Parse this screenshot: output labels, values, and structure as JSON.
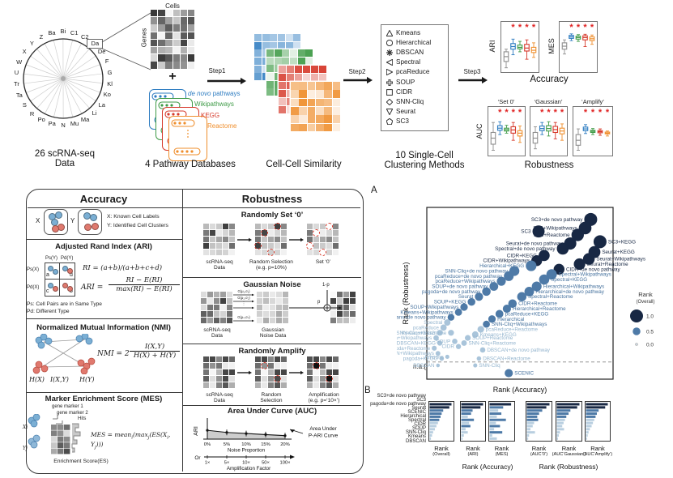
{
  "colors": {
    "blue": "#2d7cc1",
    "green": "#3f9b47",
    "red": "#d6392b",
    "orange": "#ef8f2e",
    "navy": "#182844",
    "mid_blue": "#4e7aa7",
    "light_blue": "#a9c4da",
    "gray": "#8f8f8f",
    "asterisk": "#e02020",
    "box_palette": [
      "#8f8f8f",
      "#2d7cc1",
      "#3f9b47",
      "#d6392b",
      "#ef8f2e"
    ]
  },
  "workflow": {
    "datasets": {
      "labels": [
        "Ba",
        "Bi",
        "C1",
        "C2",
        "Da",
        "De",
        "F",
        "G",
        "Kl",
        "Ko",
        "La",
        "Li",
        "Ma",
        "Mu",
        "N",
        "Pa",
        "Po",
        "R",
        "S",
        "Ta",
        "Tr",
        "U",
        "W",
        "X",
        "Y",
        "Z"
      ],
      "highlight": "Da",
      "caption1": "26 scRNA-seq",
      "caption2": "Data"
    },
    "matrix": {
      "cells": "Cells",
      "genes": "Genes",
      "plus": "+"
    },
    "pathways": {
      "items": [
        {
          "italic": "de novo",
          "text": " pathways",
          "color": "#2d7cc1"
        },
        {
          "italic": "",
          "text": "Wikipathways",
          "color": "#3f9b47"
        },
        {
          "italic": "",
          "text": "KEGG",
          "color": "#d6392b"
        },
        {
          "italic": "",
          "text": "Reactome",
          "color": "#ef8f2e"
        }
      ],
      "caption": "4 Pathway Databases"
    },
    "steps": [
      "Step1",
      "Step2",
      "Step3"
    ],
    "similarity": {
      "caption": "Cell-Cell Similarity"
    },
    "methods": {
      "items": [
        {
          "shape": "triangle-up",
          "label": "Kmeans"
        },
        {
          "shape": "circle",
          "label": "Hierarchical"
        },
        {
          "shape": "asterisk",
          "label": "DBSCAN"
        },
        {
          "shape": "triangle-left",
          "label": "Spectral"
        },
        {
          "shape": "triangle-right",
          "label": "pcaReduce"
        },
        {
          "shape": "cross",
          "label": "SOUP"
        },
        {
          "shape": "square",
          "label": "CIDR"
        },
        {
          "shape": "diamond",
          "label": "SNN-Cliq"
        },
        {
          "shape": "triangle-down",
          "label": "Seurat"
        },
        {
          "shape": "pentagon",
          "label": "SC3"
        }
      ],
      "caption1": "10 Single-Cell",
      "caption2": "Clustering Methods"
    },
    "plots": {
      "ari": "ARI",
      "mes": "MES",
      "auc": "AUC",
      "titles": [
        "‘Set 0’",
        "‘Gaussian’",
        "‘Amplify’"
      ],
      "accuracy": "Accuracy",
      "robustness": "Robustness"
    }
  },
  "metrics": {
    "acc": {
      "header": "Accuracy",
      "x": "X",
      "y": "Y",
      "note_x": "X: Known Cell Labels",
      "note_y": "Y: Identified Cell Clusters",
      "ari": {
        "heading": "Adjusted Rand Index (ARI)",
        "col1": "Ps(Y)",
        "col2": "Pd(Y)",
        "row1": "Ps(X)",
        "row2": "Pd(X)",
        "a": "a",
        "d": "d",
        "c": "c",
        "b": "b",
        "f1": "RI = (a+b)/(a+b+c+d)",
        "f2l": "ARI =",
        "f2n": "RI − E(RI)",
        "f2d": "max(RI) − E(RI)",
        "n1": "Ps: Cell Pairs are in Same Type",
        "n2": "Pd: Different Type"
      },
      "nmi": {
        "heading": "Normalized Mutual Information (NMI)",
        "hx": "H(X)",
        "ixy": "I(X,Y)",
        "hy": "H(Y)",
        "fl": "NMI = 2",
        "fn": "I(X,Y)",
        "fd": "H(X) + H(Y)"
      },
      "mes": {
        "heading": "Marker Enrichment Score (MES)",
        "gm1": "gene marker 1",
        "gm2": "gene marker 2",
        "hits": "Hits",
        "xi": "Xi",
        "yj": "Yj",
        "es": "Enrichment Score(ES)",
        "f": {
          "p1": "MES = mean",
          "s1": "i",
          "p2": "(max",
          "s2": "j",
          "p3": "(ES(X",
          "s3": "i",
          "p4": ", Y",
          "s4": "j",
          "p5": ")))"
        }
      }
    },
    "rob": {
      "header": "Robustness",
      "set0": {
        "heading": "Randomly Set ‘0’",
        "c1a": "scRNA-seq",
        "c1b": "Data",
        "c2a": "Random Selection",
        "c2b": "(e.g. p=10%)",
        "c3": "Set ‘0’"
      },
      "gauss": {
        "heading": "Gaussian Noise",
        "g1": "G(μ₁,σ₁)",
        "g2": "G(μ₂,σ₂)",
        "dots": "⋮",
        "gn": "G(μₙ,σₙ)",
        "p": "p",
        "q": "1-p",
        "c1a": "scRNA-seq",
        "c1b": "Data",
        "c2a": "Gaussian",
        "c2b": "Noise Data"
      },
      "amp": {
        "heading": "Randomly Amplify",
        "c1a": "scRNA-seq",
        "c1b": "Data",
        "c2a": "Random",
        "c2b": "Selection",
        "c3a": "Amplification",
        "c3b": "(e.g. p=‘10×’)"
      }
    }
  },
  "panelA": {
    "label": "A"
  },
  "panelB": {
    "label": "B"
  },
  "chart_data": [
    {
      "type": "scatter",
      "name": "overall-rank-scatter",
      "xlabel": "Rank (Accuracy)",
      "ylabel": "Rank (Robustness)",
      "na_label": "n.a.{",
      "dashed_y": 0.1,
      "legend": {
        "title": "Rank",
        "subtitle": "(Overall)",
        "entries": [
          {
            "label": "1.0",
            "rank": 1.0
          },
          {
            "label": "0.5",
            "rank": 0.5
          },
          {
            "label": "0.0",
            "rank": 0.0
          }
        ]
      },
      "points": [
        {
          "label": "SC3+de novo pathway",
          "x": 0.88,
          "y": 0.93,
          "rank": 1.0,
          "side": "l"
        },
        {
          "label": "SC3+KEGG",
          "x": 0.93,
          "y": 0.8,
          "rank": 1.0,
          "side": "r"
        },
        {
          "label": "SC3+Wikipathways",
          "x": 0.85,
          "y": 0.88,
          "rank": 0.97,
          "side": "l"
        },
        {
          "label": "SC3+Reactome",
          "x": 0.81,
          "y": 0.84,
          "rank": 0.95,
          "side": "l"
        },
        {
          "label": "SC3",
          "x": 0.6,
          "y": 0.86,
          "rank": 0.92,
          "side": "l"
        },
        {
          "label": "Seurat+de novo pathway",
          "x": 0.77,
          "y": 0.79,
          "rank": 0.93,
          "side": "l"
        },
        {
          "label": "Spectral+de novo pathway",
          "x": 0.73,
          "y": 0.76,
          "rank": 0.9,
          "side": "l"
        },
        {
          "label": "Seurat+KEGG",
          "x": 0.9,
          "y": 0.74,
          "rank": 0.9,
          "side": "r"
        },
        {
          "label": "Seurat+Wikipathways",
          "x": 0.87,
          "y": 0.7,
          "rank": 0.88,
          "side": "r"
        },
        {
          "label": "Seurat+Reactome",
          "x": 0.82,
          "y": 0.67,
          "rank": 0.86,
          "side": "r"
        },
        {
          "label": "CIDR+KEGG",
          "x": 0.63,
          "y": 0.72,
          "rank": 0.82,
          "side": "l"
        },
        {
          "label": "CIDR+Wikipathways",
          "x": 0.59,
          "y": 0.69,
          "rank": 0.8,
          "side": "l"
        },
        {
          "label": "Hierarchical+KEGG",
          "x": 0.56,
          "y": 0.66,
          "rank": 0.78,
          "side": "l"
        },
        {
          "label": "CIDR+de novo pathway",
          "x": 0.71,
          "y": 0.64,
          "rank": 0.8,
          "side": "r"
        },
        {
          "label": "Spectral+Wikipathways",
          "x": 0.67,
          "y": 0.61,
          "rank": 0.76,
          "side": "r"
        },
        {
          "label": "Spectral+KEGG",
          "x": 0.63,
          "y": 0.58,
          "rank": 0.74,
          "side": "r"
        },
        {
          "label": "SNN-Cliq+de novo pathway",
          "x": 0.47,
          "y": 0.63,
          "rank": 0.72,
          "side": "l"
        },
        {
          "label": "pcaReduce+de novo pathway",
          "x": 0.44,
          "y": 0.6,
          "rank": 0.7,
          "side": "l"
        },
        {
          "label": "Hierarchical+Wikipathways",
          "x": 0.59,
          "y": 0.54,
          "rank": 0.7,
          "side": "r"
        },
        {
          "label": "Hierarchical+de novo pathway",
          "x": 0.55,
          "y": 0.51,
          "rank": 0.68,
          "side": "r"
        },
        {
          "label": "Spectral+Reactome",
          "x": 0.51,
          "y": 0.48,
          "rank": 0.65,
          "side": "r"
        },
        {
          "label": "pcaReduce+Wikipathways",
          "x": 0.4,
          "y": 0.57,
          "rank": 0.62,
          "side": "l"
        },
        {
          "label": "SOUP+de novo pathway",
          "x": 0.36,
          "y": 0.54,
          "rank": 0.6,
          "side": "l"
        },
        {
          "label": "pagoda+de novo pathway",
          "x": 0.32,
          "y": 0.51,
          "rank": 0.58,
          "side": "l"
        },
        {
          "label": "Seurat",
          "x": 0.28,
          "y": 0.48,
          "rank": 0.55,
          "side": "l"
        },
        {
          "label": "CIDR+Reactome",
          "x": 0.46,
          "y": 0.44,
          "rank": 0.58,
          "side": "r"
        },
        {
          "label": "Hierarchical+Reactome",
          "x": 0.43,
          "y": 0.41,
          "rank": 0.55,
          "side": "r"
        },
        {
          "label": "pcaReduce+KEGG",
          "x": 0.39,
          "y": 0.38,
          "rank": 0.52,
          "side": "r"
        },
        {
          "label": "SOUP+KEGG",
          "x": 0.24,
          "y": 0.45,
          "rank": 0.5,
          "side": "l"
        },
        {
          "label": "SOUP+Wikipathways",
          "x": 0.2,
          "y": 0.42,
          "rank": 0.48,
          "side": "l"
        },
        {
          "label": "Kmeans+Wikipathways",
          "x": 0.17,
          "y": 0.39,
          "rank": 0.45,
          "side": "l"
        },
        {
          "label": "Kmeans+de novo pathway",
          "x": 0.13,
          "y": 0.36,
          "rank": 0.42,
          "side": "l"
        },
        {
          "label": "Hierarchical",
          "x": 0.35,
          "y": 0.35,
          "rank": 0.48,
          "side": "r"
        },
        {
          "label": "SNN-Cliq+Wikipathways",
          "x": 0.32,
          "y": 0.32,
          "rank": 0.44,
          "side": "r"
        },
        {
          "label": "pcaReduce+Reactome",
          "x": 0.29,
          "y": 0.29,
          "rank": 0.4,
          "side": "r"
        },
        {
          "label": "Kmeans+KEGG",
          "x": 0.26,
          "y": 0.26,
          "rank": 0.38,
          "side": "r"
        },
        {
          "label": "Spectral",
          "x": 0.11,
          "y": 0.33,
          "rank": 0.38,
          "side": "l"
        },
        {
          "label": "pcaReduce",
          "x": 0.09,
          "y": 0.3,
          "rank": 0.36,
          "side": "l"
        },
        {
          "label": "SNN-Cliq+KEGG",
          "x": 0.07,
          "y": 0.27,
          "rank": 0.33,
          "side": "l"
        },
        {
          "label": "Kmeans+Reactome",
          "x": 0.13,
          "y": 0.27,
          "rank": 0.33,
          "side": "l"
        },
        {
          "label": "SOUP+Reactome",
          "x": 0.22,
          "y": 0.24,
          "rank": 0.32,
          "side": "r"
        },
        {
          "label": "SNN-Cliq+Reactome",
          "x": 0.2,
          "y": 0.21,
          "rank": 0.3,
          "side": "r"
        },
        {
          "label": "pagoda+Wikipathways",
          "x": 0.05,
          "y": 0.24,
          "rank": 0.28,
          "side": "l"
        },
        {
          "label": "DBSCAN+KEGG",
          "x": 0.07,
          "y": 0.21,
          "rank": 0.26,
          "side": "l"
        },
        {
          "label": "SOUP",
          "x": 0.15,
          "y": 0.22,
          "rank": 0.28,
          "side": "l"
        },
        {
          "label": "pagoda+Reactome",
          "x": 0.04,
          "y": 0.18,
          "rank": 0.24,
          "side": "l"
        },
        {
          "label": "CIDR",
          "x": 0.17,
          "y": 0.19,
          "rank": 0.26,
          "side": "l"
        },
        {
          "label": "DBSCAN+Wikipathways",
          "x": 0.06,
          "y": 0.15,
          "rank": 0.22,
          "side": "l"
        },
        {
          "label": "DBSCAN+de novo pathway",
          "x": 0.3,
          "y": 0.17,
          "rank": 0.28,
          "side": "r"
        },
        {
          "label": "pagoda+KEGG",
          "x": 0.08,
          "y": 0.12,
          "rank": 0.2,
          "side": "l"
        },
        {
          "label": "DBSCAN+Reactome",
          "x": 0.28,
          "y": 0.12,
          "rank": 0.2,
          "side": "r"
        },
        {
          "label": "Kmeans",
          "x": 0.11,
          "y": 0.13,
          "rank": 0.16,
          "side": "l"
        },
        {
          "label": "SNN-Cliq",
          "x": 0.26,
          "y": 0.08,
          "rank": 0.16,
          "side": "r"
        },
        {
          "label": "DBSCAN",
          "x": 0.06,
          "y": 0.08,
          "rank": 0.12,
          "side": "l"
        },
        {
          "label": "SCENIC",
          "x": 0.44,
          "y": 0.035,
          "rank": 0.55,
          "side": "r"
        }
      ]
    },
    {
      "type": "bar",
      "name": "method-rank-bars",
      "categories": [
        "SC3+de novo pathway",
        "SC3",
        "pagoda+de novo pathway",
        "Seurat",
        "SCENIC",
        "Hierarchical",
        "Spectral",
        "CIDR",
        "SOUP",
        "SNN-Cliq",
        "Kmeans",
        "DBSCAN"
      ],
      "charts": [
        {
          "l1": "Rank",
          "l2": "(Overall)",
          "values": [
            1.0,
            0.9,
            0.62,
            0.55,
            0.5,
            0.44,
            0.38,
            0.31,
            0.24,
            0.16,
            0.11,
            0.06
          ]
        },
        {
          "l1": "Rank",
          "l2": "(ARI)",
          "values": [
            1.0,
            0.88,
            0.52,
            0.45,
            0.3,
            0.58,
            0.36,
            0.42,
            0.2,
            0.3,
            0.12,
            0.06
          ]
        },
        {
          "l1": "Rank",
          "l2": "(MES)",
          "values": [
            0.95,
            0.6,
            0.38,
            0.52,
            0.32,
            0.72,
            0.28,
            0.46,
            0.2,
            0.56,
            0.12,
            0.32
          ]
        },
        {
          "l1": "Rank",
          "l2": "(AUC‘0’)",
          "values": [
            1.0,
            0.86,
            0.68,
            0.54,
            0.46,
            0.5,
            0.32,
            0.26,
            0.16,
            0.36,
            0.1,
            0.06
          ]
        },
        {
          "l1": "Rank",
          "l2": "(AUC‘Gaussian’)",
          "values": [
            1.0,
            0.9,
            0.6,
            0.52,
            0.42,
            0.36,
            0.3,
            0.24,
            0.32,
            0.14,
            0.09,
            0.05
          ]
        },
        {
          "l1": "Rank",
          "l2": "(AUC‘Amplify’)",
          "values": [
            1.0,
            0.88,
            0.58,
            0.5,
            0.44,
            0.38,
            0.32,
            0.26,
            0.18,
            0.12,
            0.08,
            0.05
          ]
        }
      ],
      "group_labels": [
        "Rank (Accuracy)",
        "Rank (Robustness)"
      ]
    },
    {
      "type": "box",
      "name": "ari-box",
      "sig": 4,
      "boxes": [
        [
          5,
          22,
          35,
          48,
          55
        ],
        [
          40,
          55,
          62,
          70,
          82
        ],
        [
          48,
          56,
          60,
          66,
          76
        ],
        [
          28,
          50,
          58,
          68,
          80
        ],
        [
          33,
          46,
          52,
          60,
          72
        ]
      ]
    },
    {
      "type": "box",
      "name": "mes-box",
      "sig": 4,
      "boxes": [
        [
          42,
          55,
          63,
          72,
          80
        ],
        [
          78,
          84,
          88,
          92,
          96
        ],
        [
          76,
          82,
          86,
          90,
          94
        ],
        [
          62,
          80,
          86,
          91,
          95
        ],
        [
          68,
          78,
          83,
          88,
          93
        ]
      ]
    },
    {
      "type": "box",
      "name": "auc-set0-box",
      "sig": 4,
      "boxes": [
        [
          8,
          25,
          42,
          58,
          86
        ],
        [
          52,
          64,
          70,
          77,
          88
        ],
        [
          56,
          62,
          66,
          70,
          78
        ],
        [
          36,
          56,
          65,
          74,
          86
        ],
        [
          30,
          48,
          56,
          63,
          76
        ]
      ]
    },
    {
      "type": "box",
      "name": "auc-gaussian-box",
      "sig": 4,
      "boxes": [
        [
          12,
          28,
          42,
          58,
          74
        ],
        [
          52,
          63,
          69,
          76,
          86
        ],
        [
          48,
          62,
          69,
          77,
          88
        ],
        [
          40,
          58,
          66,
          75,
          86
        ],
        [
          36,
          54,
          62,
          70,
          82
        ]
      ]
    },
    {
      "type": "box",
      "name": "auc-amplify-box",
      "sig": 4,
      "boxes": [
        [
          8,
          22,
          36,
          52,
          68
        ],
        [
          55,
          63,
          68,
          73,
          80
        ],
        [
          52,
          58,
          61,
          64,
          69
        ],
        [
          50,
          57,
          60,
          63,
          68
        ],
        [
          48,
          54,
          56,
          59,
          62
        ]
      ]
    },
    {
      "type": "line",
      "name": "auc-curve",
      "ylabel": "ARI",
      "values": [
        0.78,
        0.7,
        0.66,
        0.62,
        0.58
      ],
      "x_ticks": [
        "0%",
        "5%",
        "10%",
        "15%",
        "20%"
      ],
      "xlabel": "Noise Proportion",
      "or_label": "Or",
      "alt_ticks": [
        "1×",
        "5×",
        "10×",
        "50×",
        "100×"
      ],
      "alt_label": "Amplification Factor",
      "ann1": "Area Under",
      "ann2": "P-ARI Curve"
    }
  ]
}
